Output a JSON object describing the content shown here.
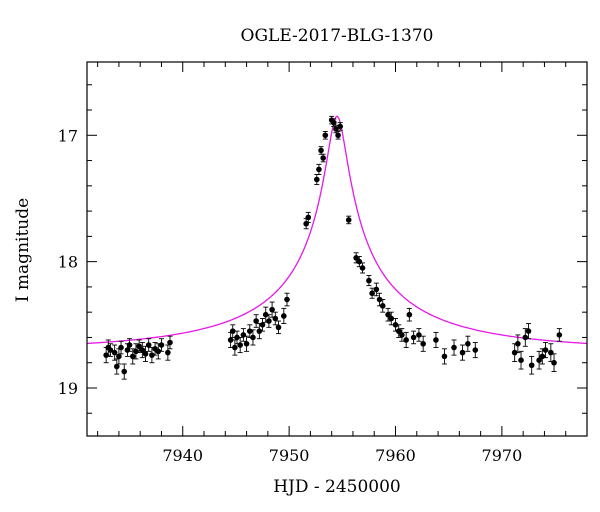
{
  "chart_data": {
    "type": "scatter",
    "title": "OGLE-2017-BLG-1370",
    "xlabel": "HJD - 2450000",
    "ylabel": "I magnitude",
    "xlim": [
      7931,
      7978
    ],
    "ylim": [
      19.38,
      16.42
    ],
    "y_inverted": true,
    "x_ticks": [
      7940,
      7950,
      7960,
      7970
    ],
    "y_ticks": [
      17,
      18,
      19
    ],
    "grid": false,
    "colors": {
      "points": "#000000",
      "model": "#e619e6"
    },
    "series": [
      {
        "kind": "points_with_errorbars",
        "x": [
          7932.8,
          7933.0,
          7933.2,
          7933.6,
          7933.8,
          7934.0,
          7934.2,
          7934.5,
          7934.8,
          7935.0,
          7935.3,
          7935.6,
          7935.9,
          7936.2,
          7936.5,
          7936.8,
          7937.1,
          7937.4,
          7937.7,
          7938.0,
          7938.6,
          7938.8,
          7944.5,
          7944.7,
          7944.9,
          7945.1,
          7945.4,
          7945.7,
          7946.0,
          7946.3,
          7946.6,
          7946.9,
          7947.2,
          7947.5,
          7947.8,
          7948.1,
          7948.4,
          7948.7,
          7949.0,
          7949.5,
          7949.8,
          7951.6,
          7951.8,
          7952.6,
          7952.8,
          7953.0,
          7953.2,
          7953.4,
          7954.0,
          7954.2,
          7954.4,
          7954.6,
          7954.8,
          7955.6,
          7956.3,
          7956.6,
          7956.9,
          7957.5,
          7957.8,
          7958.2,
          7958.5,
          7958.8,
          7959.3,
          7959.6,
          7960.0,
          7960.3,
          7960.6,
          7961.0,
          7961.3,
          7961.7,
          7962.2,
          7962.6,
          7963.8,
          7964.6,
          7965.5,
          7966.3,
          7966.8,
          7967.5,
          7971.2,
          7971.5,
          7971.8,
          7972.2,
          7972.5,
          7972.8,
          7973.5,
          7973.8,
          7974.1,
          7974.6,
          7974.9,
          7975.4
        ],
        "y": [
          18.74,
          18.68,
          18.7,
          18.72,
          18.83,
          18.75,
          18.68,
          18.87,
          18.7,
          18.66,
          18.75,
          18.71,
          18.67,
          18.7,
          18.73,
          18.66,
          18.74,
          18.69,
          18.71,
          18.66,
          18.72,
          18.64,
          18.62,
          18.55,
          18.68,
          18.6,
          18.66,
          18.58,
          18.65,
          18.55,
          18.6,
          18.47,
          18.55,
          18.5,
          18.42,
          18.47,
          18.38,
          18.45,
          18.52,
          18.43,
          18.3,
          17.7,
          17.65,
          17.35,
          17.27,
          17.12,
          17.18,
          17.0,
          16.88,
          16.9,
          16.95,
          17.0,
          16.93,
          17.67,
          17.97,
          18.0,
          18.05,
          18.15,
          18.25,
          18.22,
          18.3,
          18.35,
          18.42,
          18.45,
          18.5,
          18.55,
          18.58,
          18.62,
          18.42,
          18.6,
          18.58,
          18.65,
          18.62,
          18.75,
          18.68,
          18.72,
          18.65,
          18.7,
          18.72,
          18.65,
          18.78,
          18.6,
          18.55,
          18.82,
          18.78,
          18.75,
          18.7,
          18.72,
          18.8,
          18.58
        ],
        "error": [
          0.06,
          0.06,
          0.05,
          0.06,
          0.06,
          0.06,
          0.05,
          0.06,
          0.05,
          0.05,
          0.06,
          0.06,
          0.05,
          0.06,
          0.06,
          0.05,
          0.06,
          0.05,
          0.06,
          0.05,
          0.06,
          0.05,
          0.06,
          0.05,
          0.06,
          0.05,
          0.06,
          0.05,
          0.06,
          0.05,
          0.06,
          0.05,
          0.06,
          0.05,
          0.06,
          0.05,
          0.06,
          0.05,
          0.05,
          0.06,
          0.05,
          0.04,
          0.04,
          0.04,
          0.04,
          0.03,
          0.03,
          0.03,
          0.03,
          0.03,
          0.03,
          0.03,
          0.03,
          0.03,
          0.04,
          0.04,
          0.04,
          0.04,
          0.04,
          0.05,
          0.05,
          0.05,
          0.05,
          0.05,
          0.05,
          0.05,
          0.05,
          0.06,
          0.05,
          0.05,
          0.05,
          0.06,
          0.06,
          0.06,
          0.06,
          0.06,
          0.06,
          0.06,
          0.07,
          0.07,
          0.07,
          0.07,
          0.06,
          0.07,
          0.07,
          0.06,
          0.06,
          0.07,
          0.07,
          0.05
        ]
      },
      {
        "kind": "model_curve",
        "baseline_mag": 18.7,
        "peak_mag": 16.85,
        "t0": 7954.5,
        "tE": 20,
        "u0": 0.044
      }
    ]
  }
}
